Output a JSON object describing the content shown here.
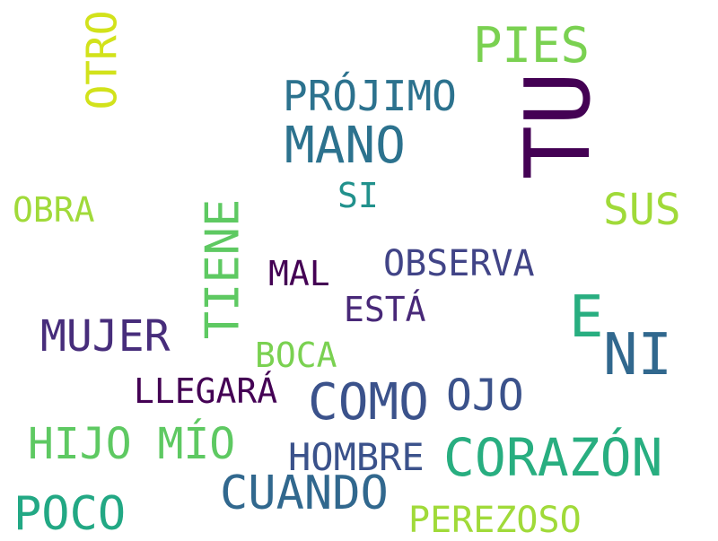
{
  "word_cloud": {
    "words": [
      {
        "text": "TU",
        "color": "#440154"
      },
      {
        "text": "PIES",
        "color": "#7ad151"
      },
      {
        "text": "OTRO",
        "color": "#d2e21b"
      },
      {
        "text": "PRÓJIMO",
        "color": "#2c728e"
      },
      {
        "text": "MANO",
        "color": "#2c728e"
      },
      {
        "text": "SI",
        "color": "#21918c"
      },
      {
        "text": "OBRA",
        "color": "#a0da39"
      },
      {
        "text": "SUS",
        "color": "#a0da39"
      },
      {
        "text": "TIENE",
        "color": "#5ec962"
      },
      {
        "text": "MAL",
        "color": "#440154"
      },
      {
        "text": "OBSERVA",
        "color": "#414487"
      },
      {
        "text": "ESTÁ",
        "color": "#482878"
      },
      {
        "text": "E",
        "color": "#28ae80"
      },
      {
        "text": "NI",
        "color": "#31688e"
      },
      {
        "text": "MUJER",
        "color": "#472d7b"
      },
      {
        "text": "BOCA",
        "color": "#7ad151"
      },
      {
        "text": "LLEGARÁ",
        "color": "#440154"
      },
      {
        "text": "COMO",
        "color": "#3b528b"
      },
      {
        "text": "OJO",
        "color": "#3b528b"
      },
      {
        "text": "HIJO MÍO",
        "color": "#5ec962"
      },
      {
        "text": "HOMBRE",
        "color": "#3b528b"
      },
      {
        "text": "CORAZÓN",
        "color": "#28ae80"
      },
      {
        "text": "CUANDO",
        "color": "#31688e"
      },
      {
        "text": "POCO",
        "color": "#22a884"
      },
      {
        "text": "PEREZOSO",
        "color": "#a0da39"
      }
    ]
  }
}
